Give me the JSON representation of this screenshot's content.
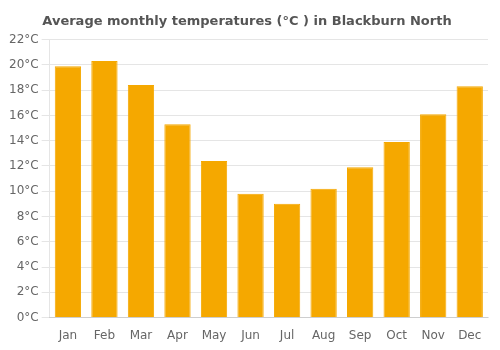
{
  "chart_data": {
    "type": "bar",
    "title": "Average monthly temperatures (°C ) in Blackburn North",
    "categories": [
      "Jan",
      "Feb",
      "Mar",
      "Apr",
      "May",
      "Jun",
      "Jul",
      "Aug",
      "Sep",
      "Oct",
      "Nov",
      "Dec"
    ],
    "values": [
      19.9,
      20.3,
      18.4,
      15.3,
      12.4,
      9.8,
      9.0,
      10.2,
      11.9,
      13.9,
      16.1,
      18.3
    ],
    "color": "#F5A800",
    "ylim": [
      0,
      22
    ],
    "yticks": [
      {
        "value": 0,
        "label": "0°C"
      },
      {
        "value": 2,
        "label": "2°C"
      },
      {
        "value": 4,
        "label": "4°C"
      },
      {
        "value": 6,
        "label": "6°C"
      },
      {
        "value": 8,
        "label": "8°C"
      },
      {
        "value": 10,
        "label": "10°C"
      },
      {
        "value": 12,
        "label": "12°C"
      },
      {
        "value": 14,
        "label": "14°C"
      },
      {
        "value": 16,
        "label": "16°C"
      },
      {
        "value": 18,
        "label": "18°C"
      },
      {
        "value": 20,
        "label": "20°C"
      },
      {
        "value": 22,
        "label": "22°C"
      }
    ],
    "grid": "y"
  }
}
